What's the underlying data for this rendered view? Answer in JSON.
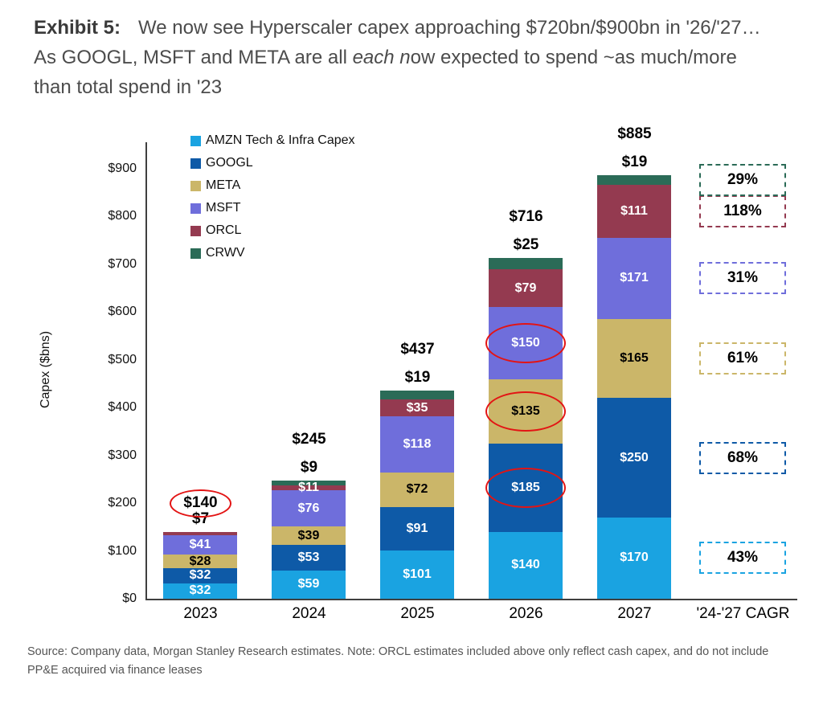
{
  "header": {
    "exhibit_label": "Exhibit 5:",
    "title_before_italic": "We now see Hyperscaler capex approaching $720bn/$900bn in '26/'27… As GOOGL, MSFT and META are all ",
    "title_italic": "each n",
    "title_after_italic": "ow expected to spend ~as much/more than total spend in '23"
  },
  "chart_data": {
    "type": "stacked-bar",
    "title": "Hyperscaler capex by company, 2023-2027e",
    "ylabel": "Capex ($bns)",
    "ylim": [
      0,
      950
    ],
    "ytick_step": 100,
    "ytick_max": 900,
    "ytick_prefix": "$",
    "grid": false,
    "legend_position": "top-left-vertical",
    "categories": [
      "2023",
      "2024",
      "2025",
      "2026",
      "2027"
    ],
    "cagr_column_label": "'24-'27 CAGR",
    "series": [
      {
        "name": "AMZN Tech & Infra Capex",
        "short": "amzn",
        "color": "#1AA3E1",
        "label_color": "#ffffff",
        "values": [
          32,
          59,
          101,
          140,
          170
        ],
        "label_above_points": [],
        "circled_points": [],
        "cagr": "43%"
      },
      {
        "name": "GOOGL",
        "short": "googl",
        "color": "#0E5AA7",
        "label_color": "#ffffff",
        "values": [
          32,
          53,
          91,
          185,
          250
        ],
        "label_above_points": [],
        "circled_points": [
          3
        ],
        "cagr": "68%"
      },
      {
        "name": "META",
        "short": "meta",
        "color": "#CBB669",
        "label_color": "#000000",
        "values": [
          28,
          39,
          72,
          135,
          165
        ],
        "label_above_points": [],
        "circled_points": [
          3
        ],
        "cagr": "61%"
      },
      {
        "name": "MSFT",
        "short": "msft",
        "color": "#6F6EDB",
        "label_color": "#ffffff",
        "values": [
          41,
          76,
          118,
          150,
          171
        ],
        "label_above_points": [],
        "circled_points": [
          3
        ],
        "cagr": "31%"
      },
      {
        "name": "ORCL",
        "short": "orcl",
        "color": "#943A50",
        "label_color": "#ffffff",
        "values": [
          7,
          11,
          35,
          79,
          111
        ],
        "label_above_points": [
          0
        ],
        "circled_points": [],
        "cagr": "118%"
      },
      {
        "name": "CRWV",
        "short": "crwv",
        "color": "#2B6B57",
        "label_color": "#ffffff",
        "values": [
          0,
          9,
          19,
          25,
          19
        ],
        "label_above_points": [
          1,
          2,
          3,
          4
        ],
        "circled_points": [],
        "cagr": "29%"
      }
    ],
    "totals": [
      140,
      245,
      437,
      716,
      885
    ],
    "total_labels": [
      "$140",
      "$245",
      "$437",
      "$716",
      "$885"
    ],
    "total_circled_index": 0,
    "value_prefix": "$",
    "annotation_red": "#E31414"
  },
  "footer": {
    "source": "Source: Company data, Morgan Stanley Research estimates. Note: ORCL estimates included above only reflect cash capex, and do not include PP&E acquired via finance leases"
  }
}
